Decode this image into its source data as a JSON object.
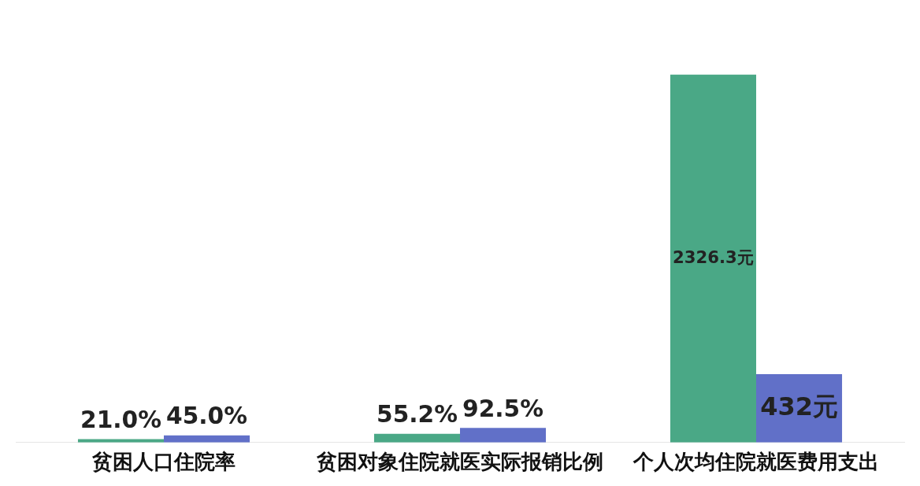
{
  "chart_data": {
    "type": "bar",
    "categories": [
      "贫困人口住院率",
      "贫困对象住院就医实际报销比例",
      "个人次均住院就医费用支出"
    ],
    "series": [
      {
        "color": "#4aa886",
        "values": [
          21.0,
          55.2,
          2326.3
        ],
        "value_labels": [
          "21.0%",
          "55.2%",
          "2326.3元"
        ]
      },
      {
        "color": "#6170c8",
        "values": [
          45.0,
          92.5,
          432
        ],
        "value_labels": [
          "45.0%",
          "92.5%",
          "432元"
        ]
      }
    ],
    "legend": false
  }
}
